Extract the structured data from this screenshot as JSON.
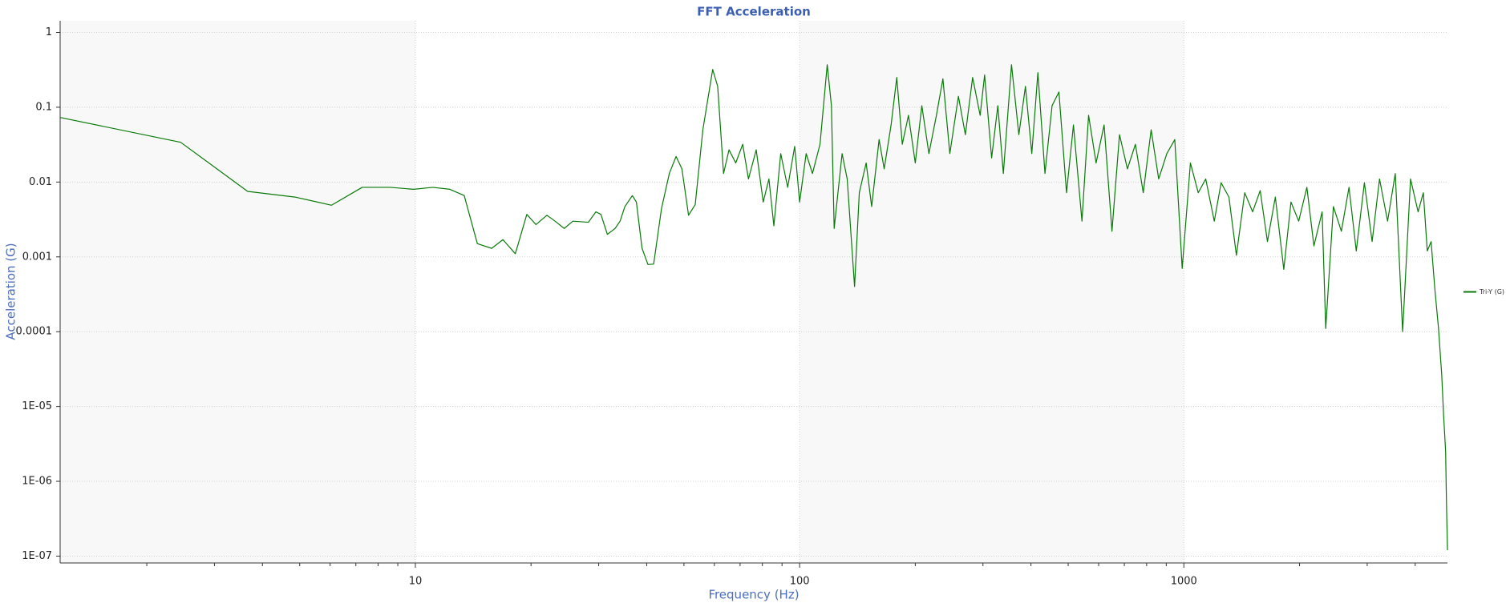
{
  "chart_data": {
    "type": "line",
    "title": "FFT Acceleration",
    "x_label": "Frequency (Hz)",
    "y_label": "Acceleration (G)",
    "x_scale": "log",
    "y_scale": "log",
    "grid": true,
    "legend": "right",
    "xlim": [
      1.19,
      4853
    ],
    "ylim": [
      8.1e-08,
      1.43
    ],
    "xticks": [
      10,
      100,
      1000
    ],
    "xminorticks": [
      2,
      3,
      4,
      5,
      6,
      7,
      8,
      9,
      20,
      30,
      40,
      50,
      60,
      70,
      80,
      90,
      200,
      300,
      400,
      500,
      600,
      700,
      800,
      900,
      2000,
      3000,
      4000
    ],
    "yticks": [
      1,
      0.1,
      0.01,
      0.001,
      0.0001,
      {
        "value": 1e-05,
        "label": "1E-05"
      },
      {
        "value": 1e-06,
        "label": "1E-06"
      },
      {
        "value": 1e-07,
        "label": "1E-07"
      }
    ],
    "x": [
      1.19,
      2.45,
      3.66,
      4.86,
      6.05,
      7.27,
      8.6,
      9.9,
      11.1,
      12.3,
      13.4,
      14.5,
      15.8,
      16.9,
      18.2,
      19.5,
      20.6,
      22.0,
      23.1,
      24.4,
      25.7,
      28.2,
      29.5,
      30.4,
      31.6,
      33.1,
      34.1,
      35.1,
      36.7,
      37.6,
      38.9,
      40.3,
      41.7,
      43.7,
      45.8,
      47.7,
      49.4,
      51.4,
      53.5,
      56.0,
      59.4,
      61.2,
      63.4,
      65.5,
      68.2,
      71.1,
      73.6,
      77.1,
      80.4,
      83.2,
      85.7,
      89.3,
      93.1,
      97.1,
      100,
      104,
      108,
      113,
      118,
      121,
      123,
      129,
      133,
      139,
      143,
      149,
      154,
      161,
      166,
      173,
      179,
      185,
      192,
      200,
      208,
      217,
      227,
      236,
      246,
      259,
      270,
      282,
      295,
      303,
      316,
      328,
      339,
      356,
      372,
      387,
      402,
      417,
      435,
      454,
      473,
      495,
      516,
      543,
      565,
      591,
      620,
      650,
      680,
      713,
      748,
      784,
      822,
      860,
      903,
      947,
      990,
      1040,
      1090,
      1140,
      1200,
      1250,
      1310,
      1370,
      1440,
      1510,
      1580,
      1650,
      1730,
      1820,
      1900,
      1990,
      2090,
      2180,
      2290,
      2340,
      2450,
      2570,
      2690,
      2810,
      2950,
      3090,
      3230,
      3390,
      3550,
      3710,
      3890,
      4070,
      4200,
      4300,
      4400,
      4500,
      4600,
      4690,
      4740,
      4800,
      4823,
      4853
    ],
    "series": [
      {
        "name": "Tri-Y (G)",
        "color": "#087a08",
        "values": [
          0.073,
          0.034,
          0.0075,
          0.0063,
          0.0049,
          0.0085,
          0.0085,
          0.008,
          0.0085,
          0.008,
          0.0066,
          0.0015,
          0.0013,
          0.0017,
          0.0011,
          0.0037,
          0.0027,
          0.0036,
          0.003,
          0.0024,
          0.003,
          0.0029,
          0.004,
          0.0037,
          0.002,
          0.0024,
          0.003,
          0.0047,
          0.0066,
          0.0054,
          0.0013,
          0.00079,
          0.0008,
          0.0044,
          0.013,
          0.022,
          0.015,
          0.0036,
          0.005,
          0.05,
          0.32,
          0.19,
          0.013,
          0.027,
          0.018,
          0.032,
          0.011,
          0.027,
          0.0054,
          0.011,
          0.0026,
          0.024,
          0.0085,
          0.03,
          0.0054,
          0.024,
          0.013,
          0.032,
          0.37,
          0.105,
          0.0024,
          0.024,
          0.011,
          0.0004,
          0.0072,
          0.018,
          0.0047,
          0.037,
          0.015,
          0.058,
          0.25,
          0.032,
          0.078,
          0.018,
          0.105,
          0.024,
          0.078,
          0.24,
          0.024,
          0.14,
          0.043,
          0.25,
          0.078,
          0.27,
          0.021,
          0.105,
          0.013,
          0.37,
          0.043,
          0.19,
          0.024,
          0.29,
          0.013,
          0.105,
          0.16,
          0.0072,
          0.058,
          0.003,
          0.078,
          0.018,
          0.058,
          0.0022,
          0.043,
          0.015,
          0.032,
          0.0072,
          0.05,
          0.011,
          0.024,
          0.037,
          0.0007,
          0.018,
          0.0072,
          0.011,
          0.003,
          0.0098,
          0.0063,
          0.00105,
          0.0072,
          0.004,
          0.0077,
          0.0016,
          0.0063,
          0.00068,
          0.0054,
          0.003,
          0.0085,
          0.0014,
          0.004,
          0.00011,
          0.0047,
          0.0022,
          0.0085,
          0.0012,
          0.0098,
          0.0016,
          0.011,
          0.003,
          0.013,
          0.0001,
          0.011,
          0.004,
          0.0072,
          0.0012,
          0.0016,
          0.00037,
          0.00011,
          2.6e-05,
          8e-06,
          2.5e-06,
          5.5e-07,
          1.2e-07
        ]
      }
    ]
  }
}
